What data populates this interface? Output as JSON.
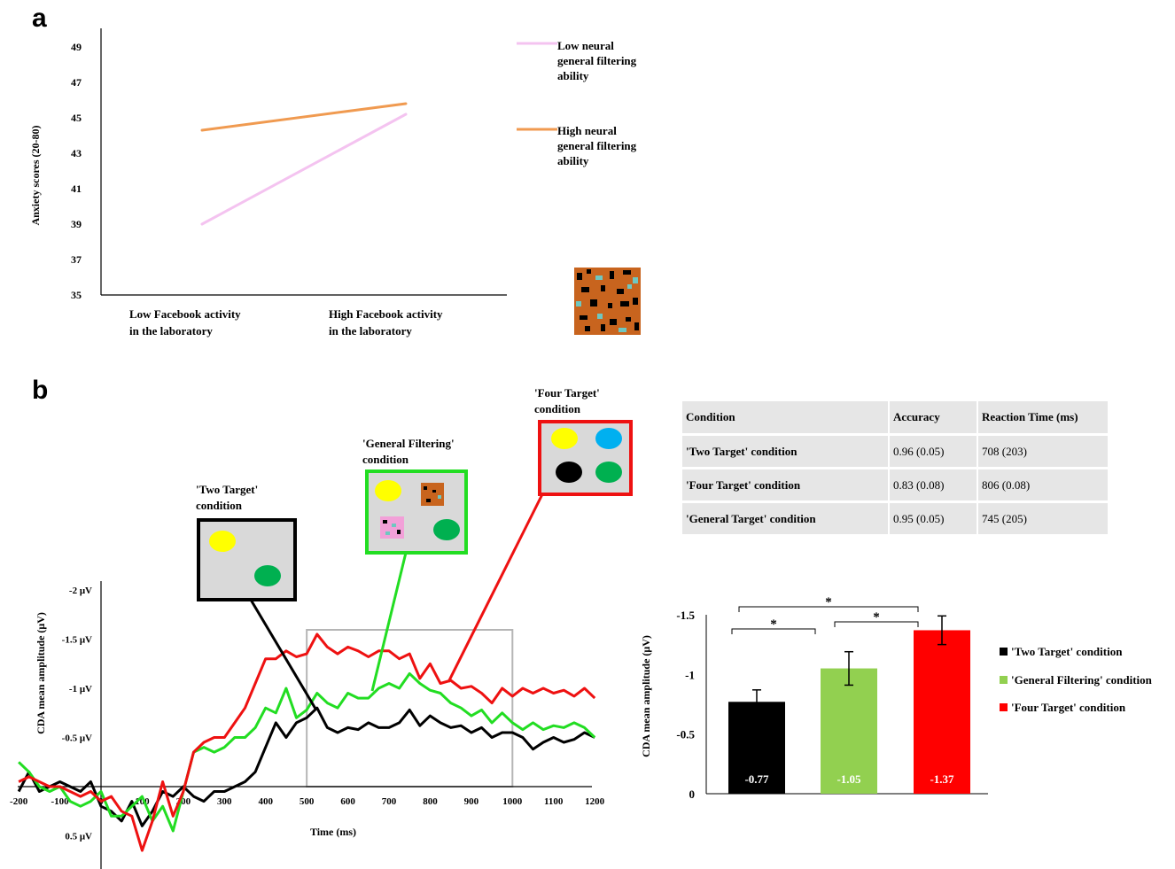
{
  "panels": {
    "a": "a",
    "b": "b"
  },
  "chart_data": [
    {
      "type": "line",
      "ylabel": "Anxiety scores (20-80)",
      "categories": [
        "Low Facebook activity\nin the laboratory",
        "High Facebook activity\nin the laboratory"
      ],
      "ylim": [
        35,
        50
      ],
      "yticks": [
        "35",
        "37",
        "39",
        "41",
        "43",
        "45",
        "47",
        "49"
      ],
      "series": [
        {
          "name": "Low neural general filtering ability",
          "values": [
            39.0,
            45.2
          ],
          "color": "#f4c3f0"
        },
        {
          "name": "High neural general filtering ability",
          "values": [
            44.3,
            45.8
          ],
          "color": "#f09a50"
        }
      ],
      "legend": "right",
      "grid": false
    },
    {
      "type": "line",
      "xlabel": "Time (ms)",
      "ylabel": "CDA mean amplitude (μV)",
      "xlim": [
        -200,
        1200
      ],
      "xticks": [
        "-200",
        "-100",
        "0",
        "100",
        "200",
        "300",
        "400",
        "500",
        "600",
        "700",
        "800",
        "900",
        "1000",
        "1100",
        "1200"
      ],
      "ylim": [
        0.9,
        -2.05
      ],
      "yticks": [
        {
          "v": -2,
          "label": "-2 μV"
        },
        {
          "v": -1.5,
          "label": "-1.5 μV"
        },
        {
          "v": -1,
          "label": "-1 μV"
        },
        {
          "v": -0.5,
          "label": "-0.5 μV"
        },
        {
          "v": 0.5,
          "label": "0.5 μV"
        }
      ],
      "analysis_window": [
        500,
        1000
      ],
      "x": [
        -200,
        -175,
        -150,
        -125,
        -100,
        -75,
        -50,
        -25,
        0,
        25,
        50,
        75,
        100,
        125,
        150,
        175,
        200,
        225,
        250,
        275,
        300,
        325,
        350,
        375,
        400,
        425,
        450,
        475,
        500,
        525,
        550,
        575,
        600,
        625,
        650,
        675,
        700,
        725,
        750,
        775,
        800,
        825,
        850,
        875,
        900,
        925,
        950,
        975,
        1000,
        1025,
        1050,
        1075,
        1100,
        1125,
        1150,
        1175,
        1200
      ],
      "series": [
        {
          "name": "'Two Target' condition",
          "color": "#000000",
          "values": [
            0.05,
            -0.15,
            0.05,
            0.0,
            -0.05,
            0.0,
            0.05,
            -0.05,
            0.2,
            0.25,
            0.35,
            0.15,
            0.4,
            0.25,
            0.05,
            0.1,
            0.0,
            0.1,
            0.15,
            0.05,
            0.05,
            0.0,
            -0.05,
            -0.15,
            -0.4,
            -0.65,
            -0.5,
            -0.65,
            -0.7,
            -0.8,
            -0.6,
            -0.55,
            -0.6,
            -0.58,
            -0.65,
            -0.6,
            -0.6,
            -0.65,
            -0.78,
            -0.62,
            -0.72,
            -0.65,
            -0.6,
            -0.62,
            -0.55,
            -0.6,
            -0.5,
            -0.55,
            -0.55,
            -0.5,
            -0.38,
            -0.45,
            -0.5,
            -0.45,
            -0.48,
            -0.55,
            -0.5
          ]
        },
        {
          "name": "'General Filtering' condition",
          "color": "#22dd22",
          "values": [
            -0.25,
            -0.15,
            0.0,
            0.05,
            0.0,
            0.15,
            0.2,
            0.15,
            0.05,
            0.3,
            0.3,
            0.2,
            0.1,
            0.35,
            0.2,
            0.45,
            0.05,
            -0.35,
            -0.4,
            -0.35,
            -0.4,
            -0.5,
            -0.5,
            -0.6,
            -0.8,
            -0.75,
            -1.0,
            -0.7,
            -0.78,
            -0.95,
            -0.85,
            -0.8,
            -0.95,
            -0.9,
            -0.9,
            -1.0,
            -1.05,
            -1.0,
            -1.15,
            -1.05,
            -0.98,
            -0.95,
            -0.85,
            -0.8,
            -0.72,
            -0.78,
            -0.65,
            -0.75,
            -0.65,
            -0.58,
            -0.65,
            -0.58,
            -0.62,
            -0.6,
            -0.65,
            -0.6,
            -0.5
          ]
        },
        {
          "name": "'Four Target' condition",
          "color": "#ee1111",
          "values": [
            -0.05,
            -0.1,
            -0.05,
            0.0,
            0.0,
            0.05,
            0.1,
            0.05,
            0.15,
            0.1,
            0.25,
            0.3,
            0.65,
            0.35,
            -0.05,
            0.3,
            0.05,
            -0.35,
            -0.45,
            -0.5,
            -0.5,
            -0.65,
            -0.8,
            -1.05,
            -1.3,
            -1.3,
            -1.38,
            -1.32,
            -1.35,
            -1.55,
            -1.42,
            -1.35,
            -1.42,
            -1.38,
            -1.32,
            -1.38,
            -1.38,
            -1.3,
            -1.35,
            -1.1,
            -1.25,
            -1.05,
            -1.08,
            -1.0,
            -1.02,
            -0.95,
            -0.85,
            -1.0,
            -0.92,
            -1.0,
            -0.95,
            -1.0,
            -0.95,
            -0.98,
            -0.92,
            -1.0,
            -0.9
          ]
        }
      ],
      "grid": false
    },
    {
      "type": "bar",
      "ylabel": "CDA mean amplitude (μV)",
      "ylim": [
        0,
        -1.5
      ],
      "yticks": [
        "0",
        "-0.5",
        "-1",
        "-1.5"
      ],
      "categories": [
        "'Two Target' condition",
        "'General Filtering' condition",
        "'Four Target' condition"
      ],
      "values": [
        -0.77,
        -1.05,
        -1.37
      ],
      "errors": [
        0.1,
        0.14,
        0.12
      ],
      "value_labels": [
        "-0.77",
        "-1.05",
        "-1.37"
      ],
      "colors": [
        "#000000",
        "#92d050",
        "#ff0000"
      ],
      "significance": [
        {
          "pair": [
            0,
            1
          ],
          "label": "*"
        },
        {
          "pair": [
            1,
            2
          ],
          "label": "*"
        },
        {
          "pair": [
            0,
            2
          ],
          "label": "*"
        }
      ],
      "legend": "right",
      "grid": false
    }
  ],
  "stimuli": {
    "two": {
      "title": [
        "'Two Target'",
        "condition"
      ],
      "color": "#000000"
    },
    "filter": {
      "title": [
        "'General Filtering'",
        "condition"
      ],
      "color": "#22dd22"
    },
    "four": {
      "title": [
        "'Four Target'",
        "condition"
      ],
      "color": "#ee1111"
    }
  },
  "table": {
    "headers": [
      "Condition",
      "Accuracy",
      "Reaction Time (ms)"
    ],
    "rows": [
      [
        "'Two Target' condition",
        "0.96 (0.05)",
        "708 (203)"
      ],
      [
        "'Four Target' condition",
        "0.83 (0.08)",
        "806 (0.08)"
      ],
      [
        "'General Target' condition",
        "0.95 (0.05)",
        "745 (205)"
      ]
    ]
  }
}
